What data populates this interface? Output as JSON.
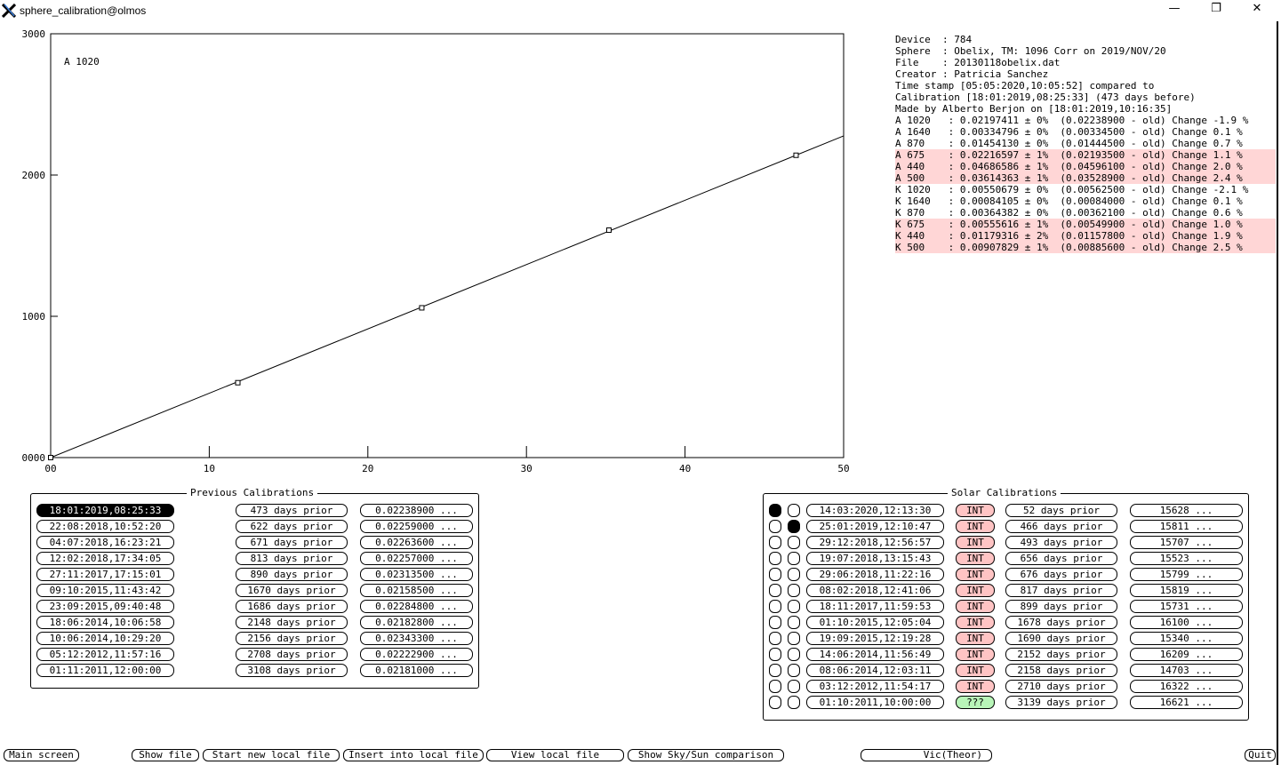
{
  "window": {
    "title": "sphere_calibration@olmos",
    "minimize": "—",
    "restore": "❐",
    "close": "✕"
  },
  "chart_data": {
    "type": "scatter",
    "title": "",
    "xlabel": "",
    "ylabel": "",
    "annotation": "A 1020",
    "xlim": [
      0,
      50
    ],
    "ylim": [
      0,
      3000
    ],
    "x_ticks": [
      "00",
      "10",
      "20",
      "30",
      "40",
      "50"
    ],
    "y_ticks": [
      "0000",
      "1000",
      "2000",
      "3000"
    ],
    "points": [
      {
        "x": 0,
        "y": 0
      },
      {
        "x": 11.8,
        "y": 530
      },
      {
        "x": 23.4,
        "y": 1060
      },
      {
        "x": 35.2,
        "y": 1610
      },
      {
        "x": 47,
        "y": 2140
      }
    ],
    "fit_line": [
      {
        "x": 0,
        "y": 0
      },
      {
        "x": 50,
        "y": 2277
      }
    ]
  },
  "info": {
    "lines": [
      {
        "text": "Device  : 784",
        "hl": false
      },
      {
        "text": "Sphere  : Obelix, TM: 1096 Corr on 2019/NOV/20",
        "hl": false
      },
      {
        "text": "File    : 20130118obelix.dat",
        "hl": false
      },
      {
        "text": "Creator : Patricia Sanchez",
        "hl": false
      },
      {
        "text": "Time stamp [05:05:2020,10:05:52] compared to",
        "hl": false
      },
      {
        "text": "Calibration [18:01:2019,08:25:33] (473 days before)",
        "hl": false
      },
      {
        "text": "Made by Alberto Berjon on [18:01:2019,10:16:35]",
        "hl": false
      },
      {
        "text": "A 1020   : 0.02197411 ± 0%  (0.02238900 - old) Change -1.9 %",
        "hl": false
      },
      {
        "text": "A 1640   : 0.00334796 ± 0%  (0.00334500 - old) Change 0.1 %",
        "hl": false
      },
      {
        "text": "A 870    : 0.01454130 ± 0%  (0.01444500 - old) Change 0.7 %",
        "hl": false
      },
      {
        "text": "A 675    : 0.02216597 ± 1%  (0.02193500 - old) Change 1.1 %",
        "hl": true
      },
      {
        "text": "A 440    : 0.04686586 ± 1%  (0.04596100 - old) Change 2.0 %",
        "hl": true
      },
      {
        "text": "A 500    : 0.03614363 ± 1%  (0.03528900 - old) Change 2.4 %",
        "hl": true
      },
      {
        "text": "K 1020   : 0.00550679 ± 0%  (0.00562500 - old) Change -2.1 %",
        "hl": false
      },
      {
        "text": "K 1640   : 0.00084105 ± 0%  (0.00084000 - old) Change 0.1 %",
        "hl": false
      },
      {
        "text": "K 870    : 0.00364382 ± 0%  (0.00362100 - old) Change 0.6 %",
        "hl": false
      },
      {
        "text": "K 675    : 0.00555616 ± 1%  (0.00549900 - old) Change 1.0 %",
        "hl": true
      },
      {
        "text": "K 440    : 0.01179316 ± 2%  (0.01157800 - old) Change 1.9 %",
        "hl": true
      },
      {
        "text": "K 500    : 0.00907829 ± 1%  (0.00885600 - old) Change 2.5 %",
        "hl": true
      }
    ]
  },
  "previous": {
    "title": "Previous Calibrations",
    "rows": [
      {
        "date": "18:01:2019,08:25:33",
        "prior": "473 days prior",
        "value": "0.02238900 ...",
        "selected": true
      },
      {
        "date": "22:08:2018,10:52:20",
        "prior": "622 days prior",
        "value": "0.02259000 ..."
      },
      {
        "date": "04:07:2018,16:23:21",
        "prior": "671 days prior",
        "value": "0.02263600 ..."
      },
      {
        "date": "12:02:2018,17:34:05",
        "prior": "813 days prior",
        "value": "0.02257000 ..."
      },
      {
        "date": "27:11:2017,17:15:01",
        "prior": "890 days prior",
        "value": "0.02313500 ..."
      },
      {
        "date": "09:10:2015,11:43:42",
        "prior": "1670 days prior",
        "value": "0.02158500 ..."
      },
      {
        "date": "23:09:2015,09:40:48",
        "prior": "1686 days prior",
        "value": "0.02284800 ..."
      },
      {
        "date": "18:06:2014,10:06:58",
        "prior": "2148 days prior",
        "value": "0.02182800 ..."
      },
      {
        "date": "10:06:2014,10:29:20",
        "prior": "2156 days prior",
        "value": "0.02343300 ..."
      },
      {
        "date": "05:12:2012,11:57:16",
        "prior": "2708 days prior",
        "value": "0.02222900 ..."
      },
      {
        "date": "01:11:2011,12:00:00",
        "prior": "3108 days prior",
        "value": "0.02181000 ..."
      }
    ]
  },
  "solar": {
    "title": "Solar Calibrations",
    "rows": [
      {
        "r1": true,
        "r2": false,
        "date": "14:03:2020,12:13:30",
        "tag": "INT",
        "prior": "52 days prior",
        "value": "15628 ..."
      },
      {
        "r1": false,
        "r2": true,
        "date": "25:01:2019,12:10:47",
        "tag": "INT",
        "prior": "466 days prior",
        "value": "15811 ..."
      },
      {
        "r1": false,
        "r2": false,
        "date": "29:12:2018,12:56:57",
        "tag": "INT",
        "prior": "493 days prior",
        "value": "15707 ..."
      },
      {
        "r1": false,
        "r2": false,
        "date": "19:07:2018,13:15:43",
        "tag": "INT",
        "prior": "656 days prior",
        "value": "15523 ..."
      },
      {
        "r1": false,
        "r2": false,
        "date": "29:06:2018,11:22:16",
        "tag": "INT",
        "prior": "676 days prior",
        "value": "15799 ..."
      },
      {
        "r1": false,
        "r2": false,
        "date": "08:02:2018,12:41:06",
        "tag": "INT",
        "prior": "817 days prior",
        "value": "15819 ..."
      },
      {
        "r1": false,
        "r2": false,
        "date": "18:11:2017,11:59:53",
        "tag": "INT",
        "prior": "899 days prior",
        "value": "15731 ..."
      },
      {
        "r1": false,
        "r2": false,
        "date": "01:10:2015,12:05:04",
        "tag": "INT",
        "prior": "1678 days prior",
        "value": "16100 ..."
      },
      {
        "r1": false,
        "r2": false,
        "date": "19:09:2015,12:19:28",
        "tag": "INT",
        "prior": "1690 days prior",
        "value": "15340 ..."
      },
      {
        "r1": false,
        "r2": false,
        "date": "14:06:2014,11:56:49",
        "tag": "INT",
        "prior": "2152 days prior",
        "value": "16209 ..."
      },
      {
        "r1": false,
        "r2": false,
        "date": "08:06:2014,12:03:11",
        "tag": "INT",
        "prior": "2158 days prior",
        "value": "14703 ..."
      },
      {
        "r1": false,
        "r2": false,
        "date": "03:12:2012,11:54:17",
        "tag": "INT",
        "prior": "2710 days prior",
        "value": "16322 ..."
      },
      {
        "r1": false,
        "r2": false,
        "date": "01:10:2011,10:00:00",
        "tag": "???",
        "prior": "3139 days prior",
        "value": "16621 ..."
      }
    ]
  },
  "buttons": {
    "main": "Main screen",
    "show_file": "Show file",
    "start_new": "Start new local file",
    "insert": "Insert into local file",
    "view": "View local file",
    "sky_sun": "Show Sky/Sun comparison",
    "vic": "Vic(Theor)",
    "quit": "Quit"
  },
  "colors": {
    "highlight": "#ffd6d6",
    "int_tag": "#ffc4c4",
    "unknown_tag": "#b8f5b8"
  }
}
